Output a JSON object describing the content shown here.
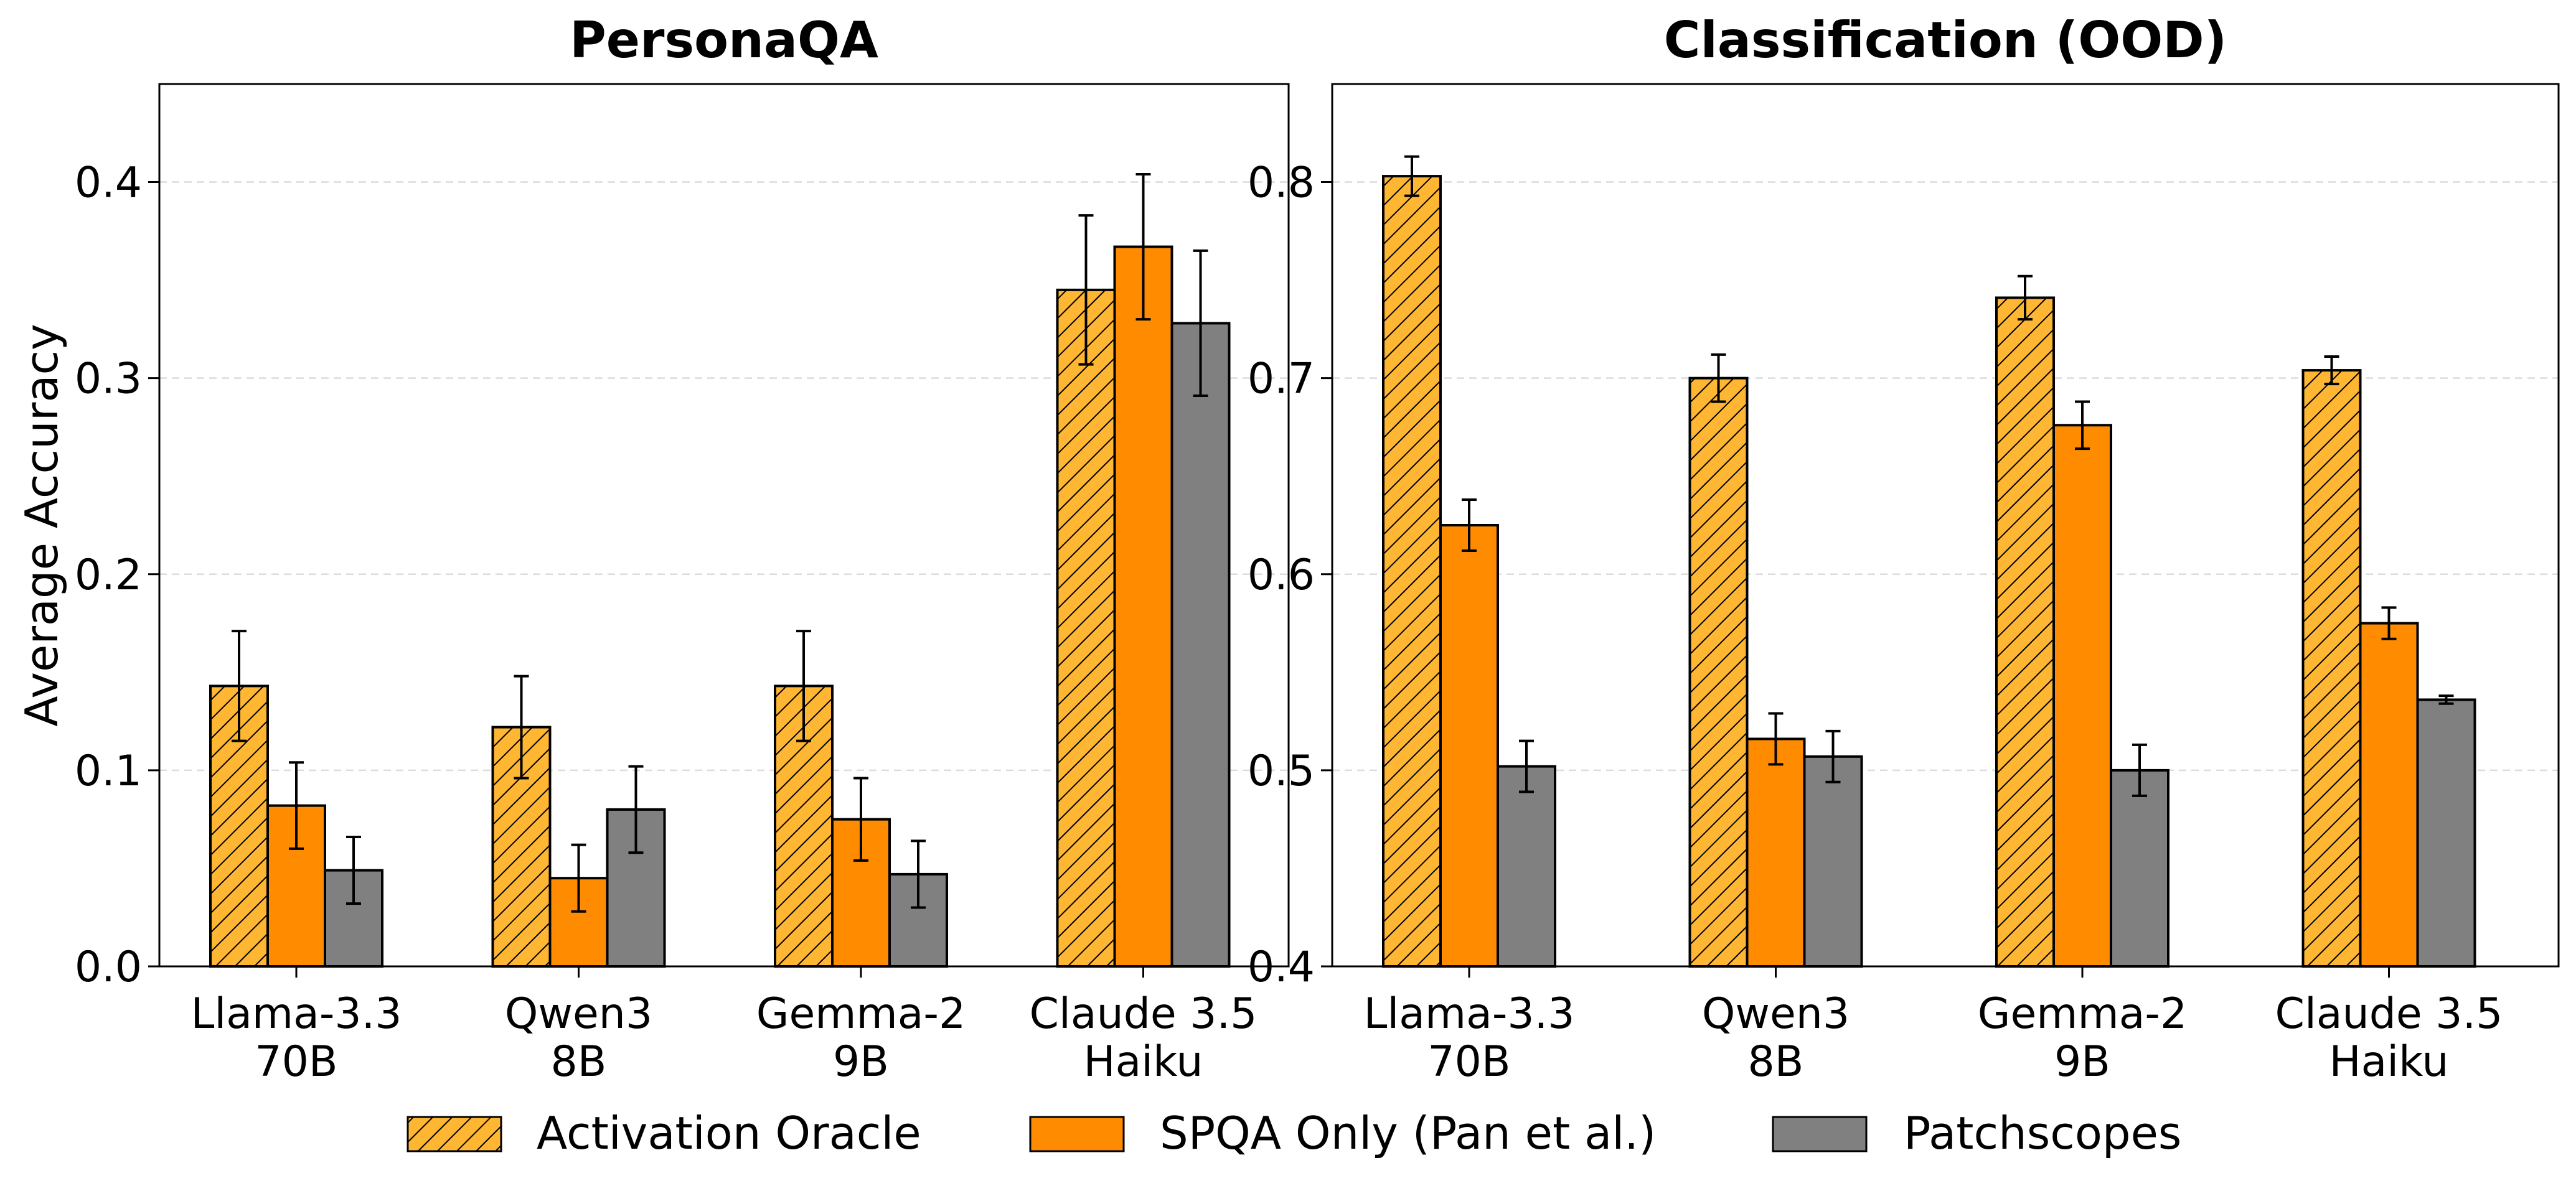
{
  "legend": {
    "items": [
      {
        "label": "Activation Oracle",
        "color": "#FFB733",
        "hatch": true
      },
      {
        "label": "SPQA Only (Pan et al.)",
        "color": "#FF8C00",
        "hatch": false
      },
      {
        "label": "Patchscopes",
        "color": "#808080",
        "hatch": false
      }
    ]
  },
  "chart_data": [
    {
      "type": "bar",
      "title": "PersonaQA",
      "ylabel": "Average Accuracy",
      "xlabel": "",
      "ylim": [
        0,
        0.45
      ],
      "yticks": [
        0.0,
        0.1,
        0.2,
        0.3,
        0.4
      ],
      "ytick_labels": [
        "0.0",
        "0.1",
        "0.2",
        "0.3",
        "0.4"
      ],
      "grid": "y-dashed",
      "categories": [
        [
          "Llama-3.3",
          "70B"
        ],
        [
          "Qwen3",
          "8B"
        ],
        [
          "Gemma-2",
          "9B"
        ],
        [
          "Claude 3.5",
          "Haiku"
        ]
      ],
      "series": [
        {
          "name": "Activation Oracle",
          "values": [
            0.143,
            0.122,
            0.143,
            0.345
          ],
          "errors": [
            0.028,
            0.026,
            0.028,
            0.038
          ]
        },
        {
          "name": "SPQA Only (Pan et al.)",
          "values": [
            0.082,
            0.045,
            0.075,
            0.367
          ],
          "errors": [
            0.022,
            0.017,
            0.021,
            0.037
          ]
        },
        {
          "name": "Patchscopes",
          "values": [
            0.049,
            0.08,
            0.047,
            0.328
          ],
          "errors": [
            0.017,
            0.022,
            0.017,
            0.037
          ]
        }
      ]
    },
    {
      "type": "bar",
      "title": "Classification (OOD)",
      "ylabel": "",
      "xlabel": "",
      "ylim": [
        0.4,
        0.85
      ],
      "yticks": [
        0.4,
        0.5,
        0.6,
        0.7,
        0.8
      ],
      "ytick_labels": [
        "0.4",
        "0.5",
        "0.6",
        "0.7",
        "0.8"
      ],
      "grid": "y-dashed",
      "categories": [
        [
          "Llama-3.3",
          "70B"
        ],
        [
          "Qwen3",
          "8B"
        ],
        [
          "Gemma-2",
          "9B"
        ],
        [
          "Claude 3.5",
          "Haiku"
        ]
      ],
      "series": [
        {
          "name": "Activation Oracle",
          "values": [
            0.803,
            0.7,
            0.741,
            0.704
          ],
          "errors": [
            0.01,
            0.012,
            0.011,
            0.007
          ]
        },
        {
          "name": "SPQA Only (Pan et al.)",
          "values": [
            0.625,
            0.516,
            0.676,
            0.575
          ],
          "errors": [
            0.013,
            0.013,
            0.012,
            0.008
          ]
        },
        {
          "name": "Patchscopes",
          "values": [
            0.502,
            0.507,
            0.5,
            0.536
          ],
          "errors": [
            0.013,
            0.013,
            0.013,
            0.002
          ]
        }
      ]
    }
  ]
}
